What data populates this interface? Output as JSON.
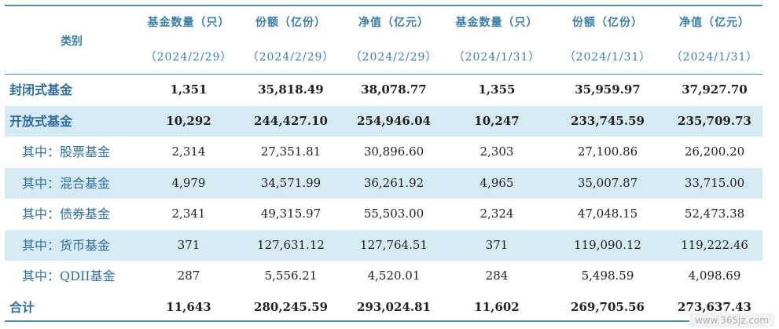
{
  "header": {
    "category": "类别",
    "columns": [
      {
        "title": "基金数量（只）",
        "date": "（2024/2/29）"
      },
      {
        "title": "份额（亿份）",
        "date": "（2024/2/29）"
      },
      {
        "title": "净值（亿元）",
        "date": "（2024/2/29）"
      },
      {
        "title": "基金数量（只）",
        "date": "（2024/1/31）"
      },
      {
        "title": "份额（亿份）",
        "date": "（2024/1/31）"
      },
      {
        "title": "净值（亿元）",
        "date": "（2024/1/31）"
      }
    ]
  },
  "rows": [
    {
      "name": "封闭式基金",
      "values": [
        "1,351",
        "35,818.49",
        "38,078.77",
        "1,355",
        "35,959.97",
        "37,927.70"
      ]
    },
    {
      "name": "开放式基金",
      "values": [
        "10,292",
        "244,427.10",
        "254,946.04",
        "10,247",
        "233,745.59",
        "235,709.73"
      ]
    },
    {
      "name": "其中：股票基金",
      "values": [
        "2,314",
        "27,351.81",
        "30,896.60",
        "2,303",
        "27,100.86",
        "26,200.20"
      ]
    },
    {
      "name": "其中：混合基金",
      "values": [
        "4,979",
        "34,571.99",
        "36,261.92",
        "4,965",
        "35,007.87",
        "33,715.00"
      ]
    },
    {
      "name": "其中：债券基金",
      "values": [
        "2,341",
        "49,315.97",
        "55,503.00",
        "2,324",
        "47,048.15",
        "52,473.38"
      ]
    },
    {
      "name": "其中：货币基金",
      "values": [
        "371",
        "127,631.12",
        "127,764.51",
        "371",
        "119,090.12",
        "119,222.46"
      ]
    },
    {
      "name": "其中：QDII基金",
      "values": [
        "287",
        "5,556.21",
        "4,520.01",
        "284",
        "5,498.59",
        "4,098.69"
      ]
    },
    {
      "name": "合计",
      "values": [
        "11,643",
        "280,245.59",
        "293,024.81",
        "11,602",
        "269,705.56",
        "273,637.43"
      ]
    }
  ],
  "watermark": "www.365jz.com"
}
